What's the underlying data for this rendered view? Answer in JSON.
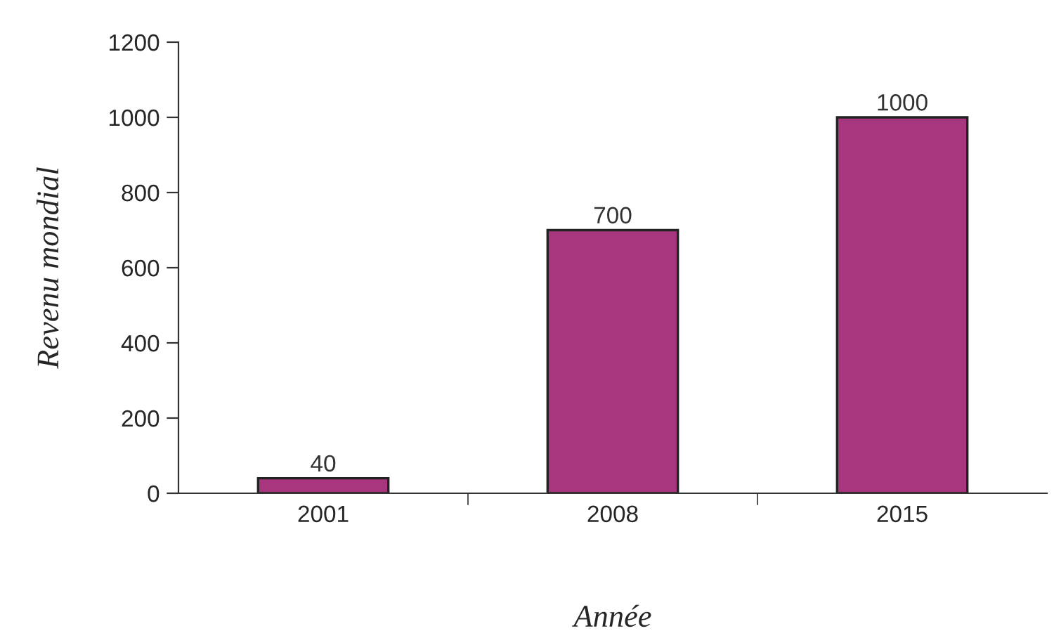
{
  "chart_data": {
    "type": "bar",
    "xlabel": "Année",
    "ylabel": "Revenu mondial",
    "categories": [
      "2001",
      "2008",
      "2015"
    ],
    "values": [
      40,
      700,
      1000
    ],
    "color": "#a8367f",
    "ylim": [
      0,
      1200
    ],
    "yticks": [
      0,
      200,
      400,
      600,
      800,
      1000,
      1200
    ],
    "data_labels": true,
    "grid": false,
    "legend": false
  }
}
